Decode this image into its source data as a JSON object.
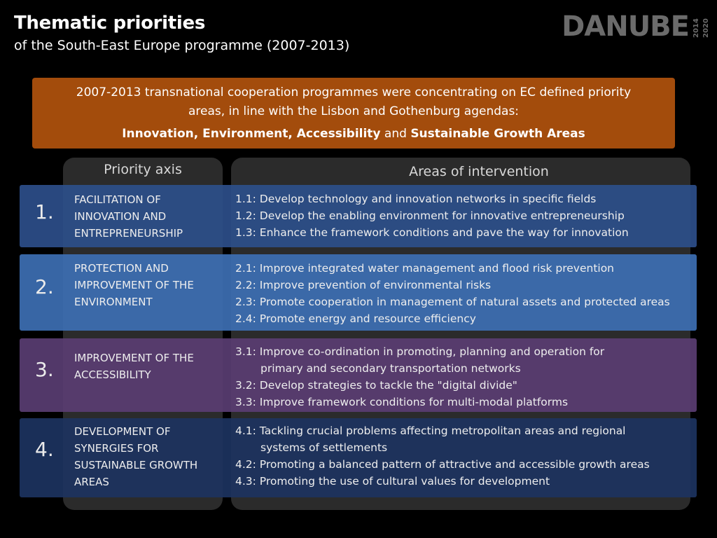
{
  "header": {
    "title": "Thematic priorities",
    "subtitle": "of the South-East Europe programme (2007-2013)"
  },
  "logo": {
    "word": "DANUBE",
    "year_start": "2014",
    "year_end": "2020"
  },
  "banner": {
    "line1": "2007-2013 transnational cooperation programmes were concentrating on EC defined priority areas, in line with the Lisbon and Gothenburg agendas:",
    "focus_main": "Innovation, Environment, Accessibility",
    "focus_and": "and",
    "focus_last": "Sustainable Growth Areas"
  },
  "columns": {
    "axis_header": "Priority axis",
    "areas_header": "Areas of intervention"
  },
  "colors": {
    "banner": "#a34c0c",
    "row1": "#2d4f8a",
    "row2": "#3d6fb3",
    "row3": "#5a3d72",
    "row4": "#1d3360"
  },
  "rows": [
    {
      "number": "1.",
      "axis": "FACILITATION OF INNOVATION AND ENTREPRENEURSHIP",
      "items": [
        {
          "text": "1.1: Develop technology and innovation networks in specific fields"
        },
        {
          "text": "1.2: Develop the enabling environment for innovative entrepreneurship"
        },
        {
          "text": "1.3: Enhance the framework conditions and pave the way for innovation"
        }
      ]
    },
    {
      "number": "2.",
      "axis": "PROTECTION AND IMPROVEMENT OF THE ENVIRONMENT",
      "items": [
        {
          "text": "2.1: Improve integrated water management and flood risk prevention"
        },
        {
          "text": "2.2: Improve prevention of environmental risks"
        },
        {
          "text": "2.3: Promote cooperation in management of natural assets and protected areas"
        },
        {
          "text": "2.4: Promote energy and resource efficiency"
        }
      ]
    },
    {
      "number": "3.",
      "axis": "IMPROVEMENT OF THE ACCESSIBILITY",
      "items": [
        {
          "text": "3.1: Improve co-ordination in promoting, planning and operation for",
          "cont": "primary and secondary transportation networks"
        },
        {
          "text": "3.2: Develop strategies to tackle the \"digital divide\""
        },
        {
          "text": "3.3: Improve framework conditions for multi-modal platforms"
        }
      ]
    },
    {
      "number": "4.",
      "axis": "DEVELOPMENT OF SYNERGIES FOR SUSTAINABLE GROWTH AREAS",
      "items": [
        {
          "text": "4.1: Tackling crucial problems affecting metropolitan areas and regional",
          "cont": "systems of settlements"
        },
        {
          "text": "4.2: Promoting a balanced pattern of attractive and accessible growth areas"
        },
        {
          "text": "4.3: Promoting the use of cultural values for development"
        }
      ]
    }
  ]
}
